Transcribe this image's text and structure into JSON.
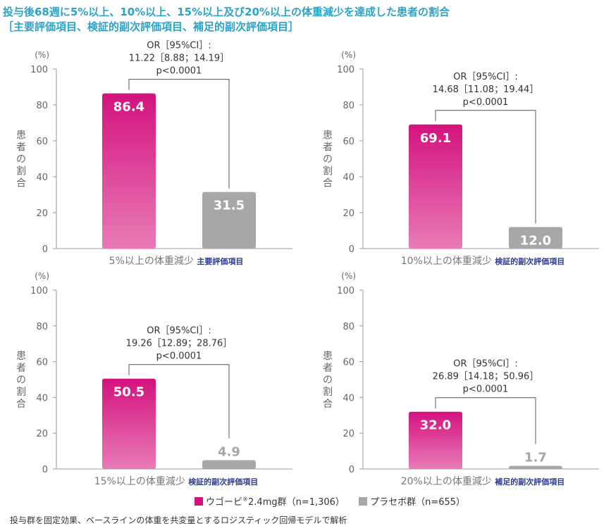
{
  "title": {
    "line1": "投与後68週に5%以上、10%以上、15%以上及び20%以上の体重減少を達成した患者の割合",
    "line2": "［主要評価項目、検証的副次評価項目、補足的副次評価項目］"
  },
  "colors": {
    "title": "#2aa3c8",
    "drug_bar_top": "#d4127e",
    "drug_bar_bottom": "#e87bb6",
    "placebo_bar": "#a7a7aa",
    "endpoint_label": "#2e3d8f",
    "axis_text": "#666666"
  },
  "chart_data": [
    {
      "type": "bar",
      "unit_label": "(%)",
      "ylabel": "患者の割合",
      "ylim": [
        0,
        100
      ],
      "yticks": [
        0,
        20,
        40,
        60,
        80,
        100
      ],
      "category": "5%以上の体重減少",
      "endpoint": "主要評価項目",
      "values": [
        86.4,
        31.5
      ],
      "value_labels": [
        "86.4",
        "31.5"
      ],
      "or_text": [
        "OR［95%CI］:",
        "11.22［8.88；14.19］",
        "p<0.0001"
      ]
    },
    {
      "type": "bar",
      "unit_label": "(%)",
      "ylabel": "患者の割合",
      "ylim": [
        0,
        100
      ],
      "yticks": [
        0,
        20,
        40,
        60,
        80,
        100
      ],
      "category": "10%以上の体重減少",
      "endpoint": "検証的副次評価項目",
      "values": [
        69.1,
        12.0
      ],
      "value_labels": [
        "69.1",
        "12.0"
      ],
      "or_text": [
        "OR［95%CI］:",
        "14.68［11.08；19.44］",
        "p<0.0001"
      ]
    },
    {
      "type": "bar",
      "unit_label": "(%)",
      "ylabel": "患者の割合",
      "ylim": [
        0,
        100
      ],
      "yticks": [
        0,
        20,
        40,
        60,
        80,
        100
      ],
      "category": "15%以上の体重減少",
      "endpoint": "検証的副次評価項目",
      "values": [
        50.5,
        4.9
      ],
      "value_labels": [
        "50.5",
        "4.9"
      ],
      "or_text": [
        "OR［95%CI］:",
        "19.26［12.89；28.76］",
        "p<0.0001"
      ]
    },
    {
      "type": "bar",
      "unit_label": "(%)",
      "ylabel": "患者の割合",
      "ylim": [
        0,
        100
      ],
      "yticks": [
        0,
        20,
        40,
        60,
        80,
        100
      ],
      "category": "20%以上の体重減少",
      "endpoint": "補足的副次評価項目",
      "values": [
        32.0,
        1.7
      ],
      "value_labels": [
        "32.0",
        "1.7"
      ],
      "or_text": [
        "OR［95%CI］:",
        "26.89［14.18；50.96］",
        "p<0.0001"
      ]
    }
  ],
  "legend": {
    "drug_prefix": "ウゴービ",
    "drug_sup": "®",
    "drug_suffix": "2.4mg群（n=1,306）",
    "placebo": "プラセボ群（n=655）"
  },
  "footnote": "投与群を固定効果、ベースラインの体重を共変量とするロジスティック回帰モデルで解析"
}
